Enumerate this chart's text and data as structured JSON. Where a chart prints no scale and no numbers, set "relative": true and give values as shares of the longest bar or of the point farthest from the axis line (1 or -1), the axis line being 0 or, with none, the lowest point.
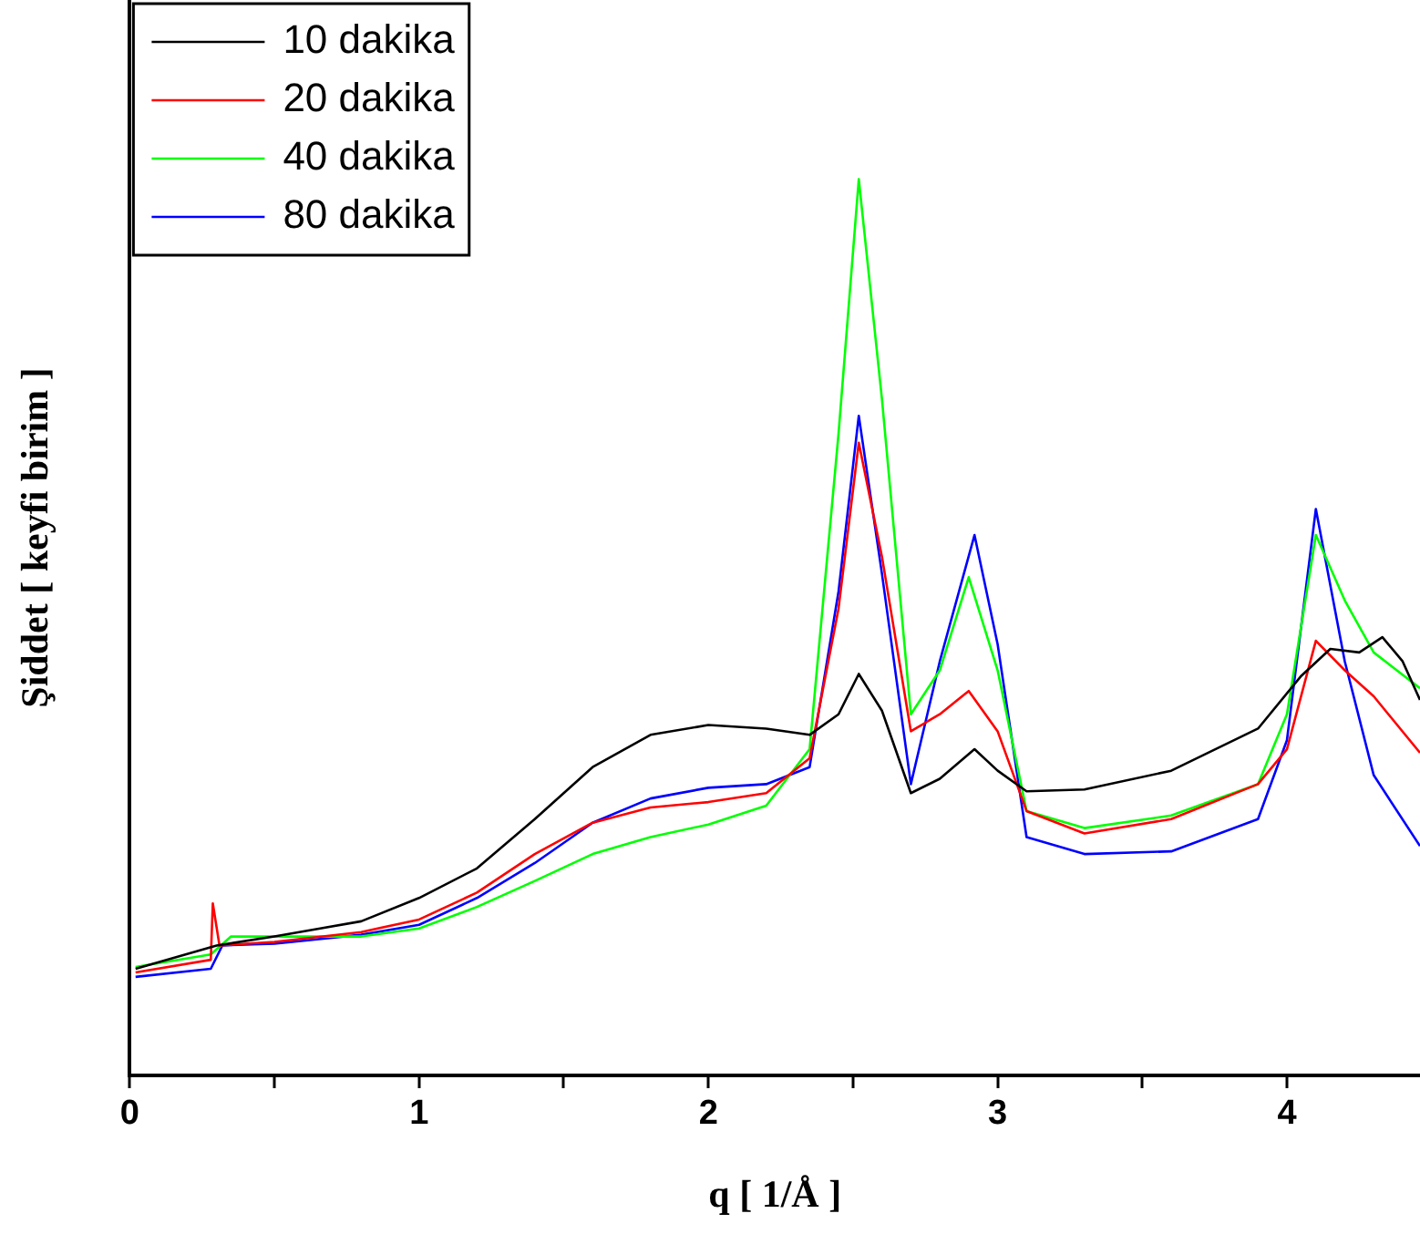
{
  "chart_data": {
    "type": "line",
    "xlabel": "q [ 1/Å ]",
    "ylabel": "Şiddet [ keyfi birim ]",
    "relative": true,
    "xlim": [
      0,
      4.46
    ],
    "xticks": [
      0,
      {
        "value": 0.5,
        "label": null
      },
      1,
      {
        "value": 1.5,
        "label": null
      },
      2,
      {
        "value": 2.5,
        "label": null
      },
      3,
      {
        "value": 3.5,
        "label": null
      },
      4
    ],
    "legend": "top left",
    "grid": false,
    "marker": "none",
    "line_style": "solid",
    "series": [
      {
        "name": "10 dakika",
        "color": "#000000",
        "x": [
          0.02,
          0.3,
          0.5,
          0.8,
          1.0,
          1.2,
          1.4,
          1.6,
          1.8,
          2.0,
          2.2,
          2.35,
          2.45,
          2.52,
          2.6,
          2.7,
          2.8,
          2.92,
          3.0,
          3.1,
          3.3,
          3.6,
          3.9,
          4.05,
          4.15,
          4.25,
          4.33,
          4.4,
          4.46
        ],
        "values": [
          0.119,
          0.145,
          0.155,
          0.172,
          0.198,
          0.231,
          0.286,
          0.344,
          0.38,
          0.391,
          0.387,
          0.38,
          0.403,
          0.448,
          0.407,
          0.315,
          0.331,
          0.364,
          0.34,
          0.317,
          0.319,
          0.34,
          0.387,
          0.446,
          0.476,
          0.472,
          0.489,
          0.462,
          0.419
        ]
      },
      {
        "name": "20 dakika",
        "color": "#ff0000",
        "x": [
          0.02,
          0.28,
          0.287,
          0.31,
          0.5,
          0.8,
          1.0,
          1.2,
          1.4,
          1.6,
          1.8,
          2.0,
          2.2,
          2.35,
          2.45,
          2.52,
          2.6,
          2.7,
          2.8,
          2.9,
          3.0,
          3.1,
          3.3,
          3.6,
          3.9,
          4.0,
          4.1,
          4.2,
          4.3,
          4.46
        ],
        "values": [
          0.115,
          0.129,
          0.192,
          0.145,
          0.149,
          0.16,
          0.174,
          0.204,
          0.247,
          0.282,
          0.299,
          0.305,
          0.315,
          0.354,
          0.521,
          0.706,
          0.579,
          0.384,
          0.403,
          0.429,
          0.384,
          0.295,
          0.27,
          0.286,
          0.325,
          0.364,
          0.485,
          0.452,
          0.423,
          0.36
        ]
      },
      {
        "name": "40 dakika",
        "color": "#00ff00",
        "x": [
          0.02,
          0.28,
          0.35,
          0.5,
          0.8,
          1.0,
          1.2,
          1.4,
          1.6,
          1.8,
          2.0,
          2.2,
          2.35,
          2.45,
          2.52,
          2.6,
          2.7,
          2.8,
          2.9,
          3.0,
          3.1,
          3.3,
          3.6,
          3.9,
          4.0,
          4.1,
          4.2,
          4.3,
          4.46
        ],
        "values": [
          0.121,
          0.135,
          0.155,
          0.155,
          0.155,
          0.164,
          0.188,
          0.217,
          0.247,
          0.266,
          0.28,
          0.301,
          0.364,
          0.716,
          1,
          0.755,
          0.403,
          0.452,
          0.556,
          0.452,
          0.295,
          0.276,
          0.29,
          0.325,
          0.403,
          0.603,
          0.53,
          0.472,
          0.432
        ]
      },
      {
        "name": "80 dakika",
        "color": "#0000ff",
        "x": [
          0.02,
          0.28,
          0.32,
          0.5,
          0.8,
          1.0,
          1.2,
          1.4,
          1.6,
          1.8,
          2.0,
          2.2,
          2.35,
          2.45,
          2.52,
          2.6,
          2.7,
          2.8,
          2.92,
          3.0,
          3.1,
          3.3,
          3.6,
          3.9,
          4.0,
          4.1,
          4.2,
          4.3,
          4.46
        ],
        "values": [
          0.11,
          0.119,
          0.145,
          0.147,
          0.157,
          0.168,
          0.198,
          0.237,
          0.282,
          0.309,
          0.321,
          0.325,
          0.344,
          0.54,
          0.736,
          0.56,
          0.325,
          0.462,
          0.603,
          0.481,
          0.266,
          0.247,
          0.25,
          0.286,
          0.374,
          0.632,
          0.462,
          0.335,
          0.256
        ]
      }
    ]
  }
}
